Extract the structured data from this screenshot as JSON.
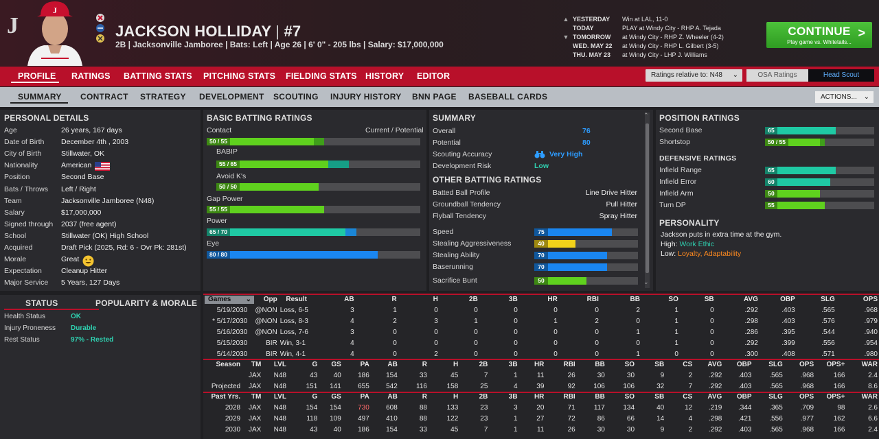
{
  "header": {
    "logo": "J",
    "name": "JACKSON HOLLIDAY",
    "sep": "|",
    "number": "#7",
    "subtitle": "2B | Jacksonville Jamboree  |  Bats: Left  |  Age 26  |  6' 0\" - 205 lbs  |  Salary: $17,000,000"
  },
  "schedule": [
    {
      "day": "YESTERDAY",
      "info": "Win at LAL, 11-0",
      "arrow": "▲"
    },
    {
      "day": "TODAY",
      "info": "PLAY at Windy City - RHP A. Tejada",
      "arrow": ""
    },
    {
      "day": "TOMORROW",
      "info": "at Windy City - RHP Z. Wheeler (4-2)",
      "arrow": "▼"
    },
    {
      "day": "WED. MAY 22",
      "info": "at Windy City - RHP L. Gilbert (3-5)",
      "arrow": ""
    },
    {
      "day": "THU. MAY 23",
      "info": "at Windy City - LHP J. Williams",
      "arrow": ""
    }
  ],
  "continue": {
    "label": "CONTINUE",
    "sub": "Play game vs. Whitetails...",
    "arrow": ">"
  },
  "nav": [
    "PROFILE",
    "RATINGS",
    "BATTING STATS",
    "PITCHING STATS",
    "FIELDING STATS",
    "HISTORY",
    "EDITOR"
  ],
  "ratings_relative": "Ratings relative to: N48",
  "osa": "OSA Ratings",
  "head_scout": "Head Scout",
  "subnav": [
    "SUMMARY",
    "CONTRACT",
    "STRATEGY",
    "DEVELOPMENT",
    "SCOUTING",
    "INJURY HISTORY",
    "BNN PAGE",
    "BASEBALL CARDS"
  ],
  "actions": "ACTIONS...",
  "personal": {
    "title": "PERSONAL DETAILS",
    "rows": [
      [
        "Age",
        "26 years, 167 days"
      ],
      [
        "Date of Birth",
        "December 4th , 2003"
      ],
      [
        "City of Birth",
        "Stillwater, OK"
      ],
      [
        "Nationality",
        "American"
      ],
      [
        "Position",
        "Second Base"
      ],
      [
        "Bats / Throws",
        "Left / Right"
      ],
      [
        "Team",
        "Jacksonville Jamboree (N48)"
      ],
      [
        "Salary",
        "$17,000,000"
      ],
      [
        "Signed through",
        "2037 (free agent)"
      ],
      [
        "School",
        "Stillwater (OK) High School"
      ],
      [
        "Acquired",
        "Draft Pick (2025, Rd: 6 - Ovr Pk: 281st)"
      ],
      [
        "Morale",
        "Great"
      ],
      [
        "Expectation",
        "Cleanup Hitter"
      ],
      [
        "Major Service",
        "5 Years, 127 Days"
      ]
    ]
  },
  "status": {
    "tab1": "STATUS",
    "tab2": "POPULARITY & MORALE",
    "rows": [
      [
        "Health Status",
        "OK"
      ],
      [
        "Injury Proneness",
        "Durable"
      ],
      [
        "Rest Status",
        "97% - Rested"
      ]
    ]
  },
  "batting": {
    "title": "BASIC BATTING RATINGS",
    "col": "Current / Potential",
    "ratings": [
      {
        "label": "Contact",
        "cur": 50,
        "pot": 55,
        "text": "50 / 55",
        "color": "#5fd11e",
        "color2": "#3f9f1a"
      },
      {
        "label": "BABIP",
        "cur": 55,
        "pot": 65,
        "text": "55 / 65",
        "color": "#5fd11e",
        "color2": "#169e86"
      },
      {
        "label": "Avoid K's",
        "cur": 50,
        "pot": 50,
        "text": "50 / 50",
        "color": "#5fd11e",
        "color2": "#5fd11e"
      },
      {
        "label": "Gap Power",
        "cur": 55,
        "pot": 55,
        "text": "55 / 55",
        "color": "#5fd11e",
        "color2": "#5fd11e"
      },
      {
        "label": "Power",
        "cur": 65,
        "pot": 70,
        "text": "65 / 70",
        "color": "#1fc9a4",
        "color2": "#1b86d6"
      },
      {
        "label": "Eye",
        "cur": 80,
        "pot": 80,
        "text": "80 / 80",
        "color": "#1a86f0",
        "color2": "#1a86f0"
      }
    ]
  },
  "summary": {
    "title": "SUMMARY",
    "overall_label": "Overall",
    "overall": "76",
    "potential_label": "Potential",
    "potential": "80",
    "scout_label": "Scouting Accuracy",
    "scout": "Very High",
    "risk_label": "Development Risk",
    "risk": "Low",
    "other_title": "OTHER BATTING RATINGS",
    "other": [
      [
        "Batted Ball Profile",
        "Line Drive Hitter"
      ],
      [
        "Groundball Tendency",
        "Pull Hitter"
      ],
      [
        "Flyball Tendency",
        "Spray Hitter"
      ]
    ],
    "running": [
      {
        "label": "Speed",
        "value": 75,
        "color": "#1a86f0"
      },
      {
        "label": "Stealing Aggressiveness",
        "value": 40,
        "color": "#f2d21a"
      },
      {
        "label": "Stealing Ability",
        "value": 70,
        "color": "#1a86f0"
      },
      {
        "label": "Baserunning",
        "value": 70,
        "color": "#1a86f0"
      },
      {
        "label": "Sacrifice Bunt",
        "value": 50,
        "color": "#5fd11e"
      }
    ]
  },
  "position": {
    "title": "POSITION RATINGS",
    "rows": [
      {
        "label": "Second Base",
        "value": 65,
        "text": "65",
        "color": "#1fc9a4",
        "pot": null
      },
      {
        "label": "Shortstop",
        "value": 50,
        "text": "50 / 55",
        "color": "#5fd11e",
        "pot": 55
      }
    ],
    "def_title": "DEFENSIVE RATINGS",
    "def": [
      {
        "label": "Infield Range",
        "value": 65,
        "color": "#1fc9a4"
      },
      {
        "label": "Infield Error",
        "value": 60,
        "color": "#1fc9a4"
      },
      {
        "label": "Infield Arm",
        "value": 50,
        "color": "#5fd11e"
      },
      {
        "label": "Turn DP",
        "value": 55,
        "color": "#5fd11e"
      }
    ],
    "personality_title": "PERSONALITY",
    "personality_text": "Jackson puts in extra time at the gym.",
    "high_label": "High:",
    "high": "Work Ethic",
    "low_label": "Low:",
    "low": "Loyalty, Adaptability"
  },
  "games": {
    "select": "Games",
    "headers": [
      "Opp",
      "Result",
      "AB",
      "R",
      "H",
      "2B",
      "3B",
      "HR",
      "RBI",
      "BB",
      "SO",
      "SB",
      "AVG",
      "OBP",
      "SLG",
      "OPS"
    ],
    "rows": [
      [
        "5/19/2030",
        "@NON",
        "Loss, 6-5",
        "3",
        "1",
        "0",
        "0",
        "0",
        "0",
        "0",
        "2",
        "1",
        "0",
        ".292",
        ".403",
        ".565",
        ".968"
      ],
      [
        "* 5/17/2030",
        "@NON",
        "Loss, 8-3",
        "4",
        "2",
        "3",
        "1",
        "0",
        "1",
        "2",
        "0",
        "1",
        "0",
        ".298",
        ".403",
        ".576",
        ".979"
      ],
      [
        "5/16/2030",
        "@NON",
        "Loss, 7-6",
        "3",
        "0",
        "0",
        "0",
        "0",
        "0",
        "0",
        "1",
        "1",
        "0",
        ".286",
        ".395",
        ".544",
        ".940"
      ],
      [
        "5/15/2030",
        "BIR",
        "Win, 3-1",
        "4",
        "0",
        "0",
        "0",
        "0",
        "0",
        "0",
        "0",
        "1",
        "0",
        ".292",
        ".399",
        ".556",
        ".954"
      ],
      [
        "5/14/2030",
        "BIR",
        "Win, 4-1",
        "4",
        "0",
        "2",
        "0",
        "0",
        "0",
        "0",
        "1",
        "0",
        "0",
        ".300",
        ".408",
        ".571",
        ".980"
      ]
    ]
  },
  "season": {
    "headers": [
      "Season",
      "TM",
      "LVL",
      "G",
      "GS",
      "PA",
      "AB",
      "R",
      "H",
      "2B",
      "3B",
      "HR",
      "RBI",
      "BB",
      "SO",
      "SB",
      "CS",
      "AVG",
      "OBP",
      "SLG",
      "OPS",
      "OPS+",
      "WAR"
    ],
    "rows": [
      [
        "",
        "JAX",
        "N48",
        "43",
        "40",
        "186",
        "154",
        "33",
        "45",
        "7",
        "1",
        "11",
        "26",
        "30",
        "30",
        "9",
        "2",
        ".292",
        ".403",
        ".565",
        ".968",
        "166",
        "2.4"
      ],
      [
        "Projected",
        "JAX",
        "N48",
        "151",
        "141",
        "655",
        "542",
        "116",
        "158",
        "25",
        "4",
        "39",
        "92",
        "106",
        "106",
        "32",
        "7",
        ".292",
        ".403",
        ".565",
        ".968",
        "166",
        "8.6"
      ]
    ]
  },
  "past": {
    "headers": [
      "Past Yrs.",
      "TM",
      "LVL",
      "G",
      "GS",
      "PA",
      "AB",
      "R",
      "H",
      "2B",
      "3B",
      "HR",
      "RBI",
      "BB",
      "SO",
      "SB",
      "CS",
      "AVG",
      "OBP",
      "SLG",
      "OPS",
      "OPS+",
      "WAR"
    ],
    "rows": [
      [
        "2028",
        "JAX",
        "N48",
        "154",
        "154",
        "730",
        "608",
        "88",
        "133",
        "23",
        "3",
        "20",
        "71",
        "117",
        "134",
        "40",
        "12",
        ".219",
        ".344",
        ".365",
        ".709",
        "98",
        "2.6"
      ],
      [
        "2029",
        "JAX",
        "N48",
        "118",
        "109",
        "497",
        "410",
        "88",
        "122",
        "23",
        "1",
        "27",
        "72",
        "86",
        "66",
        "14",
        "4",
        ".298",
        ".421",
        ".556",
        ".977",
        "162",
        "6.6"
      ],
      [
        "2030",
        "JAX",
        "N48",
        "43",
        "40",
        "186",
        "154",
        "33",
        "45",
        "7",
        "1",
        "11",
        "26",
        "30",
        "30",
        "9",
        "2",
        ".292",
        ".403",
        ".565",
        ".968",
        "166",
        "2.4"
      ]
    ]
  },
  "colors": {
    "accent": "#b8102a",
    "continue": "#3bb02c"
  }
}
